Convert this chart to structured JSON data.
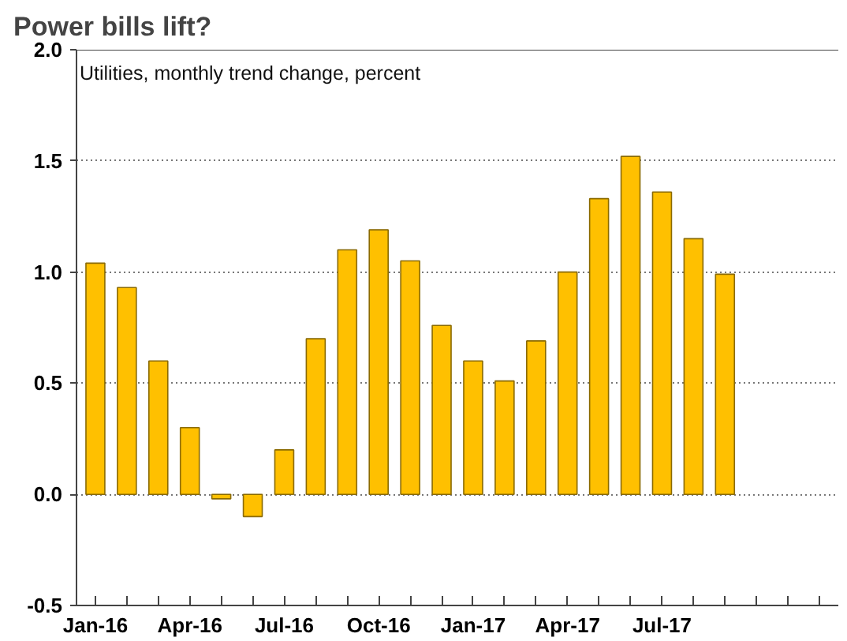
{
  "chart_data": {
    "type": "bar",
    "title": "Power bills lift?",
    "subtitle": "Utilities, monthly trend change, percent",
    "categories": [
      "Jan-16",
      null,
      null,
      "Apr-16",
      null,
      null,
      "Jul-16",
      null,
      null,
      "Oct-16",
      null,
      null,
      "Jan-17",
      null,
      null,
      "Apr-17",
      null,
      null,
      "Jul-17",
      null,
      null,
      null,
      null,
      null
    ],
    "series": [
      {
        "color": "#ffc000",
        "values": [
          1.04,
          0.93,
          0.6,
          0.3,
          -0.02,
          -0.1,
          0.2,
          0.7,
          1.1,
          1.19,
          1.05,
          0.76,
          0.6,
          0.51,
          0.69,
          1.0,
          1.33,
          1.52,
          1.36,
          1.15,
          0.99,
          null,
          null,
          null
        ]
      }
    ],
    "ylim": [
      -0.5,
      2.0
    ],
    "yticks": [
      {
        "value": -0.5,
        "label": "-0.5"
      },
      {
        "value": 0,
        "label": "0.0"
      },
      {
        "value": 0.5,
        "label": "0.5"
      },
      {
        "value": 1.0,
        "label": "1.0"
      },
      {
        "value": 1.5,
        "label": "1.5"
      },
      {
        "value": 2.0,
        "label": "2.0"
      }
    ],
    "grid": "y"
  }
}
